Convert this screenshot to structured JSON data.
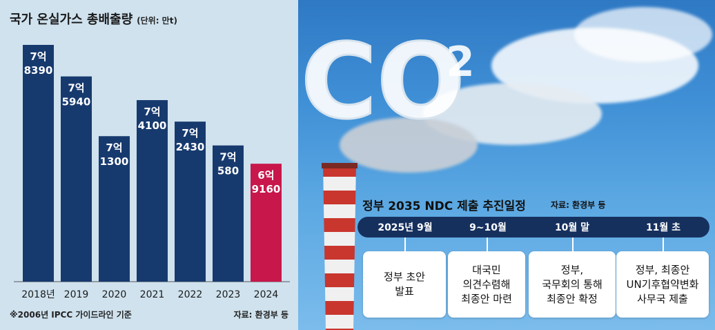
{
  "left": {
    "title": "국가 온실가스 총배출량",
    "unit": "(단위: 만t)",
    "footnote": "※2006년 IPCC 가이드라인 기준",
    "source": "자료: 환경부 등"
  },
  "chart_data": {
    "type": "bar",
    "categories": [
      "2018년",
      "2019",
      "2020",
      "2021",
      "2022",
      "2023",
      "2024"
    ],
    "values": [
      78390,
      75940,
      71300,
      74100,
      72430,
      70580,
      69160
    ],
    "value_labels": [
      [
        "7억",
        "8390"
      ],
      [
        "7억",
        "5940"
      ],
      [
        "7억",
        "1300"
      ],
      [
        "7억",
        "4100"
      ],
      [
        "7억",
        "2430"
      ],
      [
        "7억",
        "580"
      ],
      [
        "6억",
        "9160"
      ]
    ],
    "colors": [
      "#173a6e",
      "#173a6e",
      "#173a6e",
      "#173a6e",
      "#173a6e",
      "#173a6e",
      "#c8174b"
    ]
  },
  "timeline": {
    "title": "정부 2035 NDC 제출 추진일정",
    "source": "자료: 환경부 등",
    "items": [
      {
        "date": "2025년 9월",
        "text": "정부 초안\n발표"
      },
      {
        "date": "9~10월",
        "text": "대국민\n의견수렴해\n최종안 마련"
      },
      {
        "date": "10월 말",
        "text": "정부,\n국무회의 통해\n최종안 확정"
      },
      {
        "date": "11월 초",
        "text": "정부, 최종안\nUN기후협약변화\n사무국 제출"
      }
    ]
  },
  "image": {
    "co2_text": "CO",
    "co2_sub": "2"
  }
}
